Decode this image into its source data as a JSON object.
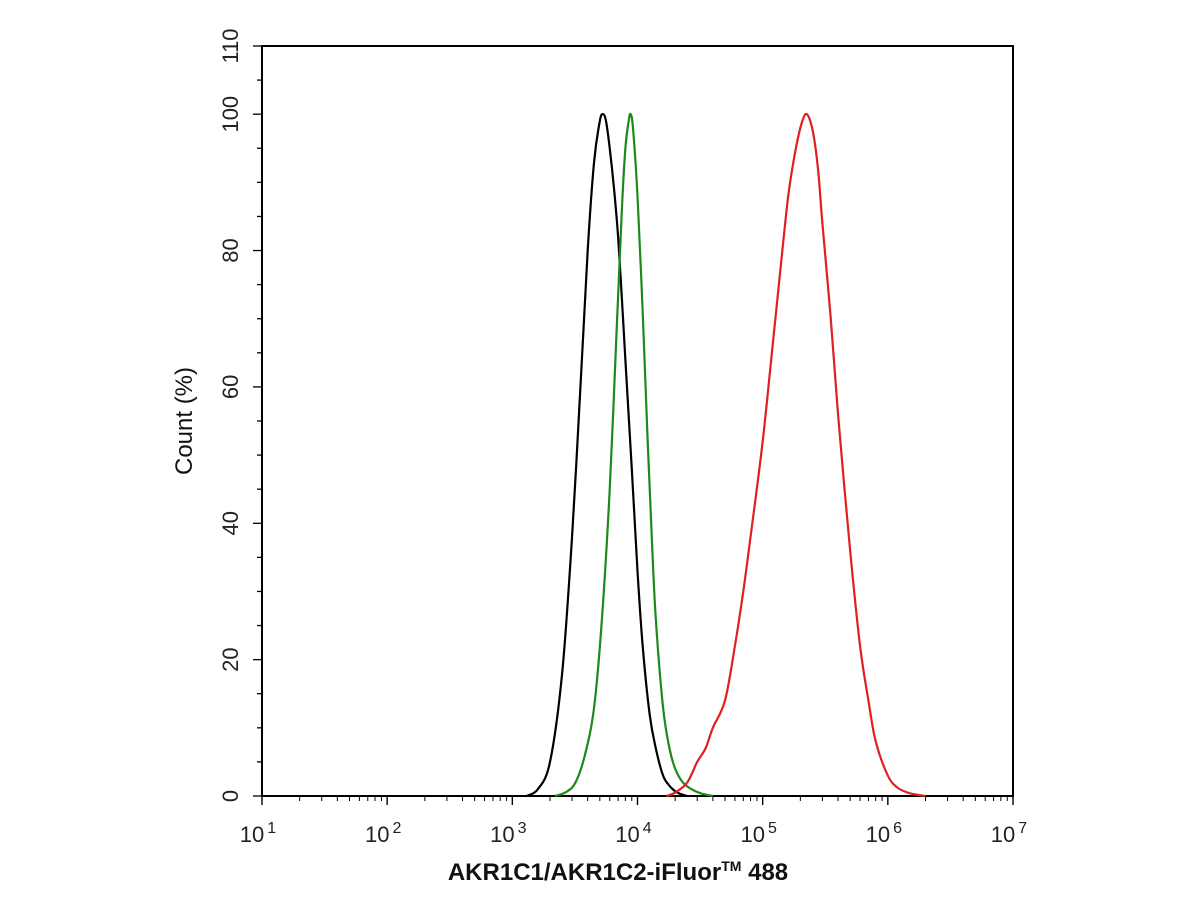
{
  "chart_data": {
    "type": "line",
    "title": "",
    "xlabel": "AKR1C1/AKR1C2-iFluor",
    "xlabel_tm": "TM",
    "xlabel_suffix": " 488",
    "ylabel": "Count  (%)",
    "xscale": "log",
    "xlim": [
      10,
      10000000
    ],
    "ylim": [
      0,
      110
    ],
    "x_ticks": [
      {
        "base": "10",
        "exp": "1"
      },
      {
        "base": "10",
        "exp": "2"
      },
      {
        "base": "10",
        "exp": "3"
      },
      {
        "base": "10",
        "exp": "4"
      },
      {
        "base": "10",
        "exp": "5"
      },
      {
        "base": "10",
        "exp": "6"
      },
      {
        "base": "10",
        "exp": "7"
      }
    ],
    "y_ticks": [
      "0",
      "20",
      "40",
      "60",
      "80",
      "100",
      "110"
    ],
    "grid": false,
    "legend": "none",
    "series": [
      {
        "color": "#000000",
        "x": [
          1300,
          1600,
          2000,
          2500,
          3000,
          3500,
          4000,
          4500,
          5000,
          5300,
          5600,
          6000,
          6500,
          7000,
          7500,
          8000,
          9000,
          10000,
          11000,
          12500,
          14000,
          16000,
          18000,
          20000,
          22000,
          25000
        ],
        "y": [
          0,
          1,
          5,
          18,
          38,
          60,
          80,
          93,
          99,
          100,
          99,
          95,
          89,
          82,
          73,
          64,
          48,
          33,
          22,
          12,
          7,
          3,
          1.5,
          0.7,
          0.3,
          0
        ]
      },
      {
        "color": "#1b8a1b",
        "x": [
          2200,
          2700,
          3200,
          3800,
          4500,
          5200,
          6000,
          6800,
          7500,
          8000,
          8500,
          8800,
          9200,
          10000,
          11000,
          12000,
          13000,
          14000,
          16000,
          18000,
          20000,
          23000,
          27000,
          32000,
          40000
        ],
        "y": [
          0,
          0.6,
          2,
          6,
          13,
          26,
          45,
          68,
          86,
          95,
          99,
          100,
          98,
          88,
          71,
          53,
          38,
          26,
          13,
          7,
          4,
          2,
          1,
          0.4,
          0
        ]
      },
      {
        "color": "#e02020",
        "x": [
          17000,
          20000,
          25000,
          30000,
          35000,
          40000,
          50000,
          60000,
          70000,
          80000,
          100000,
          120000,
          140000,
          160000,
          180000,
          200000,
          220000,
          240000,
          260000,
          280000,
          300000,
          350000,
          400000,
          500000,
          600000,
          700000,
          800000,
          1000000,
          1200000,
          1500000,
          2000000
        ],
        "y": [
          0,
          0.5,
          2,
          5,
          7,
          10,
          14,
          22,
          30,
          38,
          52,
          66,
          78,
          88,
          94,
          98,
          100,
          99,
          96,
          91,
          84,
          70,
          56,
          36,
          22,
          14,
          8,
          3,
          1.2,
          0.4,
          0
        ]
      }
    ]
  }
}
